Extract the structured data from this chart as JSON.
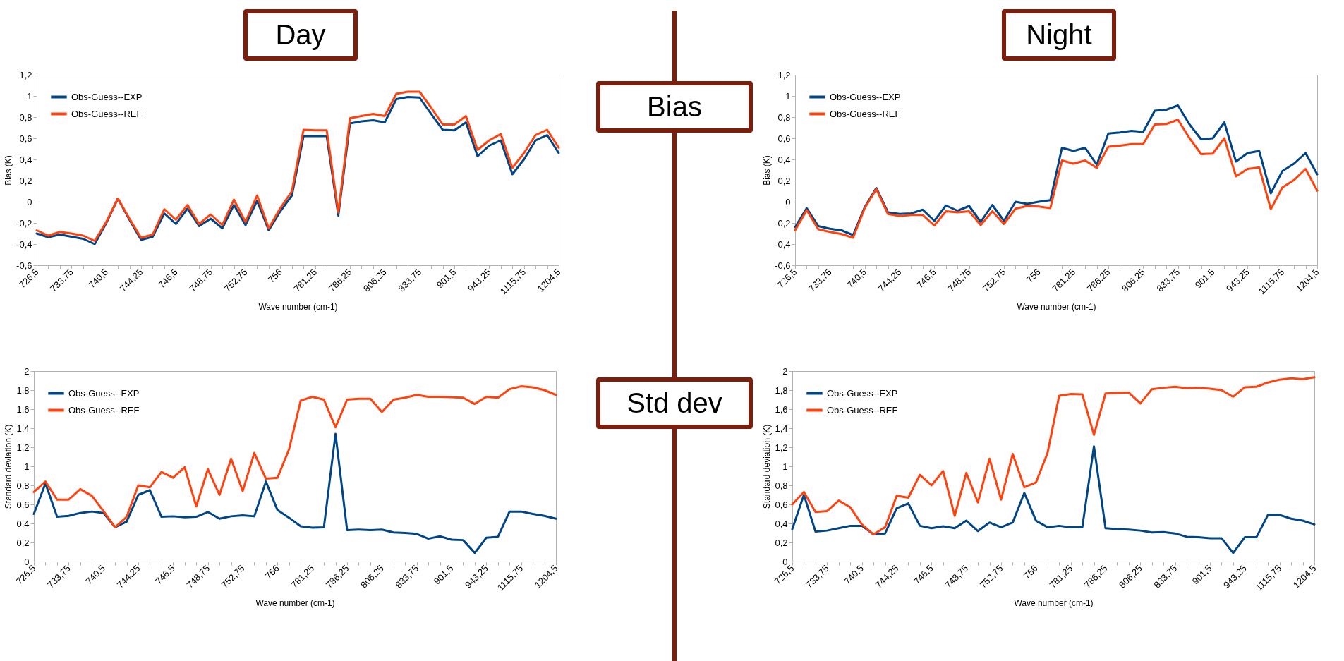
{
  "chart_data": [
    {
      "type": "line",
      "title": "Day",
      "annotations": [
        "Bias"
      ],
      "xlabel": "Wave number (cm-1)",
      "ylabel": "Bias (K)",
      "legend": "top left",
      "categories": [
        "726,5",
        null,
        null,
        "733,75",
        null,
        null,
        "740,5",
        null,
        null,
        "744,25",
        null,
        null,
        "746,5",
        null,
        null,
        "748,75",
        null,
        null,
        "752,75",
        null,
        null,
        "756",
        null,
        null,
        "781,25",
        null,
        null,
        "786,25",
        null,
        null,
        "806,25",
        null,
        null,
        "833,75",
        null,
        null,
        "901,5",
        null,
        null,
        "943,25",
        null,
        null,
        "1115,75",
        null,
        null,
        "1204,5"
      ],
      "ylim": [
        -0.6,
        1.2
      ],
      "yticks": [
        {
          "value": -0.6,
          "label": "-0,6"
        },
        {
          "value": -0.4,
          "label": "-0,4"
        },
        {
          "value": -0.2,
          "label": "-0,2"
        },
        0,
        {
          "value": 0.2,
          "label": "0,2"
        },
        {
          "value": 0.4,
          "label": "0,4"
        },
        {
          "value": 0.6,
          "label": "0,6"
        },
        {
          "value": 0.8,
          "label": "0,8"
        },
        1,
        {
          "value": 1.2,
          "label": "1,2"
        }
      ],
      "series": [
        {
          "name": "Obs-Guess--EXP",
          "color": "#004586",
          "values": [
            -0.3,
            -0.335,
            -0.31,
            -0.33,
            -0.35,
            -0.4,
            -0.2,
            0.03,
            -0.17,
            -0.36,
            -0.33,
            -0.11,
            -0.21,
            -0.065,
            -0.23,
            -0.16,
            -0.25,
            -0.03,
            -0.22,
            0.01,
            -0.27,
            -0.09,
            0.06,
            0.62,
            0.62,
            0.62,
            -0.13,
            0.74,
            0.76,
            0.77,
            0.75,
            0.97,
            0.99,
            0.985,
            0.83,
            0.68,
            0.675,
            0.75,
            0.43,
            0.53,
            0.58,
            0.26,
            0.4,
            0.58,
            0.63,
            0.46
          ]
        },
        {
          "name": "Obs-Guess--REF",
          "color": "#ff420e",
          "values": [
            -0.27,
            -0.32,
            -0.285,
            -0.3,
            -0.32,
            -0.37,
            -0.19,
            0.03,
            -0.16,
            -0.34,
            -0.31,
            -0.07,
            -0.17,
            -0.03,
            -0.21,
            -0.12,
            -0.22,
            0.02,
            -0.19,
            0.06,
            -0.25,
            -0.06,
            0.1,
            0.68,
            0.675,
            0.675,
            -0.1,
            0.79,
            0.81,
            0.83,
            0.81,
            1.02,
            1.04,
            1.04,
            0.89,
            0.73,
            0.73,
            0.81,
            0.49,
            0.58,
            0.64,
            0.32,
            0.46,
            0.63,
            0.68,
            0.51
          ]
        }
      ]
    },
    {
      "type": "line",
      "title": "Night",
      "xlabel": "Wave number (cm-1)",
      "ylabel": "Bias (K)",
      "legend": "top left",
      "categories": [
        "726,5",
        null,
        null,
        "733,75",
        null,
        null,
        "740,5",
        null,
        null,
        "744,25",
        null,
        null,
        "746,5",
        null,
        null,
        "748,75",
        null,
        null,
        "752,75",
        null,
        null,
        "756",
        null,
        null,
        "781,25",
        null,
        null,
        "786,25",
        null,
        null,
        "806,25",
        null,
        null,
        "833,75",
        null,
        null,
        "901,5",
        null,
        null,
        "943,25",
        null,
        null,
        "1115,75",
        null,
        null,
        "1204,5"
      ],
      "ylim": [
        -0.6,
        1.2
      ],
      "yticks": [
        {
          "value": -0.6,
          "label": "-0,6"
        },
        {
          "value": -0.4,
          "label": "-0,4"
        },
        {
          "value": -0.2,
          "label": "-0,2"
        },
        0,
        {
          "value": 0.2,
          "label": "0,2"
        },
        {
          "value": 0.4,
          "label": "0,4"
        },
        {
          "value": 0.6,
          "label": "0,6"
        },
        {
          "value": 0.8,
          "label": "0,8"
        },
        1,
        {
          "value": 1.2,
          "label": "1,2"
        }
      ],
      "series": [
        {
          "name": "Obs-Guess--EXP",
          "color": "#004586",
          "values": [
            -0.24,
            -0.06,
            -0.23,
            -0.255,
            -0.27,
            -0.315,
            -0.05,
            0.13,
            -0.1,
            -0.115,
            -0.11,
            -0.075,
            -0.18,
            -0.035,
            -0.085,
            -0.04,
            -0.19,
            -0.03,
            -0.18,
            0,
            -0.02,
            0,
            0.015,
            0.51,
            0.48,
            0.51,
            0.35,
            0.645,
            0.655,
            0.67,
            0.66,
            0.86,
            0.87,
            0.91,
            0.73,
            0.59,
            0.6,
            0.75,
            0.38,
            0.46,
            0.48,
            0.08,
            0.29,
            0.36,
            0.46,
            0.26
          ]
        },
        {
          "name": "Obs-Guess--REF",
          "color": "#ff420e",
          "values": [
            -0.27,
            -0.08,
            -0.26,
            -0.285,
            -0.305,
            -0.34,
            -0.06,
            0.12,
            -0.115,
            -0.135,
            -0.125,
            -0.125,
            -0.225,
            -0.09,
            -0.1,
            -0.09,
            -0.22,
            -0.09,
            -0.21,
            -0.065,
            -0.04,
            -0.045,
            -0.06,
            0.39,
            0.36,
            0.39,
            0.32,
            0.52,
            0.53,
            0.545,
            0.545,
            0.73,
            0.735,
            0.775,
            0.6,
            0.45,
            0.455,
            0.6,
            0.24,
            0.31,
            0.325,
            -0.07,
            0.135,
            0.205,
            0.31,
            0.105
          ]
        }
      ]
    },
    {
      "type": "line",
      "annotations": [
        "Std dev"
      ],
      "xlabel": "Wave number (cm-1)",
      "ylabel": "Standard deviation (K)",
      "legend": "top left",
      "categories": [
        "726,5",
        null,
        null,
        "733,75",
        null,
        null,
        "740,5",
        null,
        null,
        "744,25",
        null,
        null,
        "746,5",
        null,
        null,
        "748,75",
        null,
        null,
        "752,75",
        null,
        null,
        "756",
        null,
        null,
        "781,25",
        null,
        null,
        "786,25",
        null,
        null,
        "806,25",
        null,
        null,
        "833,75",
        null,
        null,
        "901,5",
        null,
        null,
        "943,25",
        null,
        null,
        "1115,75",
        null,
        null,
        "1204,5"
      ],
      "ylim": [
        0,
        2
      ],
      "yticks": [
        0,
        {
          "value": 0.2,
          "label": "0,2"
        },
        {
          "value": 0.4,
          "label": "0,4"
        },
        {
          "value": 0.6,
          "label": "0,6"
        },
        {
          "value": 0.8,
          "label": "0,8"
        },
        1,
        {
          "value": 1.2,
          "label": "1,2"
        },
        {
          "value": 1.4,
          "label": "1,4"
        },
        {
          "value": 1.6,
          "label": "1,6"
        },
        {
          "value": 1.8,
          "label": "1,8"
        },
        2
      ],
      "series": [
        {
          "name": "Obs-Guess--EXP",
          "color": "#004586",
          "values": [
            0.5,
            0.82,
            0.47,
            0.48,
            0.51,
            0.525,
            0.51,
            0.36,
            0.42,
            0.7,
            0.75,
            0.47,
            0.475,
            0.465,
            0.47,
            0.52,
            0.45,
            0.475,
            0.485,
            0.475,
            0.84,
            0.54,
            0.46,
            0.37,
            0.355,
            0.36,
            1.34,
            0.33,
            0.335,
            0.33,
            0.335,
            0.305,
            0.3,
            0.29,
            0.24,
            0.265,
            0.23,
            0.225,
            0.09,
            0.25,
            0.26,
            0.525,
            0.525,
            0.5,
            0.48,
            0.45
          ]
        },
        {
          "name": "Obs-Guess--REF",
          "color": "#ff420e",
          "values": [
            0.73,
            0.84,
            0.65,
            0.65,
            0.76,
            0.69,
            0.53,
            0.36,
            0.47,
            0.8,
            0.78,
            0.94,
            0.88,
            0.99,
            0.58,
            0.97,
            0.7,
            1.08,
            0.74,
            1.14,
            0.87,
            0.88,
            1.18,
            1.69,
            1.73,
            1.7,
            1.41,
            1.7,
            1.71,
            1.71,
            1.57,
            1.7,
            1.72,
            1.75,
            1.73,
            1.73,
            1.725,
            1.72,
            1.655,
            1.73,
            1.72,
            1.81,
            1.84,
            1.83,
            1.8,
            1.75
          ]
        }
      ]
    },
    {
      "type": "line",
      "xlabel": "Wave number (cm-1)",
      "ylabel": "Standard deviation (K)",
      "legend": "top left",
      "categories": [
        "726,5",
        null,
        null,
        "733,75",
        null,
        null,
        "740,5",
        null,
        null,
        "744,25",
        null,
        null,
        "746,5",
        null,
        null,
        "748,75",
        null,
        null,
        "752,75",
        null,
        null,
        "756",
        null,
        null,
        "781,25",
        null,
        null,
        "786,25",
        null,
        null,
        "806,25",
        null,
        null,
        "833,75",
        null,
        null,
        "901,5",
        null,
        null,
        "943,25",
        null,
        null,
        "1115,75",
        null,
        null,
        "1204,5"
      ],
      "ylim": [
        0,
        2
      ],
      "yticks": [
        0,
        {
          "value": 0.2,
          "label": "0,2"
        },
        {
          "value": 0.4,
          "label": "0,4"
        },
        {
          "value": 0.6,
          "label": "0,6"
        },
        {
          "value": 0.8,
          "label": "0,8"
        },
        1,
        {
          "value": 1.2,
          "label": "1,2"
        },
        {
          "value": 1.4,
          "label": "1,4"
        },
        {
          "value": 1.6,
          "label": "1,6"
        },
        {
          "value": 1.8,
          "label": "1,8"
        },
        2
      ],
      "series": [
        {
          "name": "Obs-Guess--EXP",
          "color": "#004586",
          "values": [
            0.34,
            0.7,
            0.315,
            0.325,
            0.35,
            0.375,
            0.375,
            0.285,
            0.295,
            0.56,
            0.61,
            0.375,
            0.35,
            0.37,
            0.35,
            0.43,
            0.32,
            0.41,
            0.36,
            0.41,
            0.72,
            0.43,
            0.36,
            0.375,
            0.36,
            0.36,
            1.21,
            0.35,
            0.34,
            0.335,
            0.325,
            0.305,
            0.31,
            0.295,
            0.26,
            0.255,
            0.245,
            0.245,
            0.09,
            0.255,
            0.255,
            0.49,
            0.49,
            0.45,
            0.43,
            0.39
          ]
        },
        {
          "name": "Obs-Guess--REF",
          "color": "#ff420e",
          "values": [
            0.6,
            0.73,
            0.52,
            0.53,
            0.64,
            0.57,
            0.39,
            0.285,
            0.36,
            0.69,
            0.67,
            0.91,
            0.8,
            0.95,
            0.48,
            0.93,
            0.62,
            1.08,
            0.65,
            1.13,
            0.78,
            0.83,
            1.14,
            1.74,
            1.76,
            1.755,
            1.33,
            1.765,
            1.77,
            1.775,
            1.66,
            1.81,
            1.825,
            1.835,
            1.82,
            1.825,
            1.815,
            1.8,
            1.73,
            1.83,
            1.835,
            1.88,
            1.91,
            1.925,
            1.915,
            1.935
          ]
        }
      ]
    }
  ]
}
